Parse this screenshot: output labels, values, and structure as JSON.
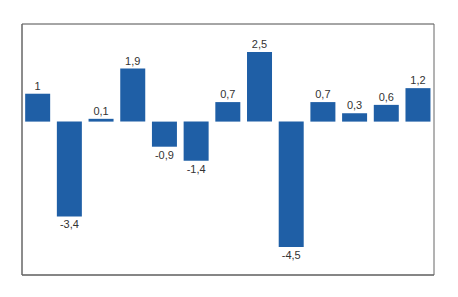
{
  "chart_data": {
    "type": "bar",
    "categories": [
      null,
      null,
      null,
      null,
      null,
      null,
      null,
      null,
      null,
      null,
      null,
      null,
      null
    ],
    "values": [
      1.0,
      -3.4,
      0.1,
      1.9,
      -0.9,
      -1.4,
      0.7,
      2.5,
      -4.5,
      0.7,
      0.3,
      0.6,
      1.2
    ],
    "value_labels": [
      "1",
      "-3,4",
      "0,1",
      "1,9",
      "-0,9",
      "-1,4",
      "0,7",
      "2,5",
      "-4,5",
      "0,7",
      "0,3",
      "0,6",
      "1,2"
    ],
    "data_labels": true,
    "color": "#1F5FA6",
    "ylim": [
      -5.5,
      3.5
    ],
    "yticks": [
      -5,
      -4,
      -3,
      -2,
      -1,
      0,
      1,
      2,
      3
    ],
    "grid": true,
    "tick_labels": false
  }
}
